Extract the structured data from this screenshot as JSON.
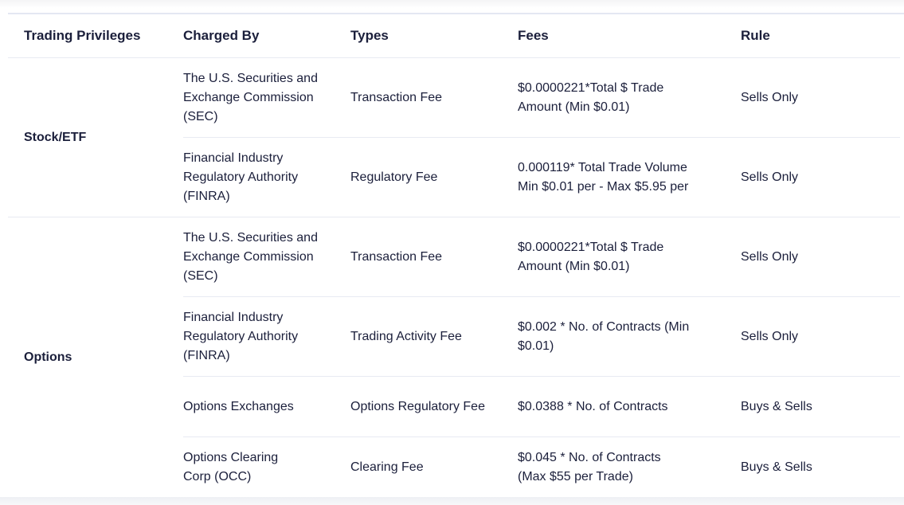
{
  "headers": {
    "privilege": "Trading Privileges",
    "charged_by": "Charged By",
    "types": "Types",
    "fees": "Fees",
    "rule": "Rule"
  },
  "groups": [
    {
      "privilege": "Stock/ETF",
      "rows": [
        {
          "charged_by": "The U.S. Securities and Exchange Commission (SEC)",
          "type": "Transaction Fee",
          "fee": "$0.0000221*Total $ Trade Amount (Min $0.01)",
          "rule": "Sells Only"
        },
        {
          "charged_by": "Financial Industry Regulatory Authority (FINRA)",
          "type": "Regulatory Fee",
          "fee": "0.000119* Total Trade Volume Min $0.01 per - Max $5.95 per",
          "rule": "Sells Only"
        }
      ]
    },
    {
      "privilege": "Options",
      "rows": [
        {
          "charged_by": "The U.S. Securities and Exchange Commission (SEC)",
          "type": "Transaction Fee",
          "fee": "$0.0000221*Total $ Trade Amount (Min $0.01)",
          "rule": "Sells Only"
        },
        {
          "charged_by": "Financial Industry Regulatory Authority (FINRA)",
          "type": "Trading Activity Fee",
          "fee": "$0.002 * No. of Contracts (Min $0.01)",
          "rule": "Sells Only"
        },
        {
          "charged_by": "Options Exchanges",
          "type": "Options Regulatory Fee",
          "fee": "$0.0388 * No. of Contracts",
          "rule": "Buys & Sells"
        },
        {
          "charged_by": "Options Clearing Corp (OCC)",
          "type": "Clearing Fee",
          "fee": "$0.045 * No. of Contracts (Max $55 per Trade)",
          "rule": "Buys & Sells"
        }
      ]
    }
  ]
}
